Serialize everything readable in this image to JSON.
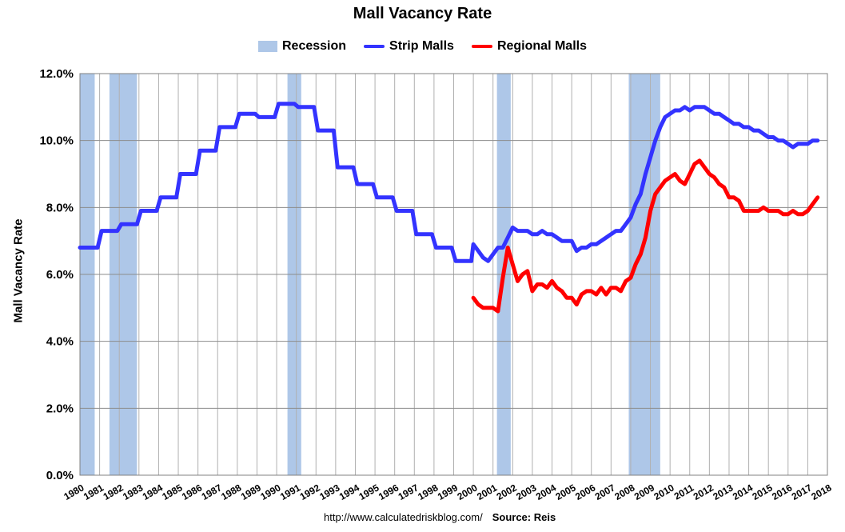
{
  "chart_data": {
    "type": "line",
    "title": "Mall Vacancy Rate",
    "ylabel": "Mall Vacancy Rate",
    "xlabel": "",
    "ylim": [
      0,
      12
    ],
    "xlim": [
      1980,
      2018
    ],
    "y_ticks": [
      "0.0%",
      "2.0%",
      "4.0%",
      "6.0%",
      "8.0%",
      "10.0%",
      "12.0%"
    ],
    "x_ticks": [
      "1980",
      "1981",
      "1982",
      "1983",
      "1984",
      "1985",
      "1986",
      "1987",
      "1988",
      "1989",
      "1990",
      "1991",
      "1992",
      "1993",
      "1994",
      "1995",
      "1996",
      "1997",
      "1998",
      "1999",
      "2000",
      "2001",
      "2002",
      "2003",
      "2004",
      "2005",
      "2006",
      "2007",
      "2008",
      "2009",
      "2010",
      "2011",
      "2012",
      "2013",
      "2014",
      "2015",
      "2016",
      "2017",
      "2018"
    ],
    "grid": true,
    "legend": "top-center",
    "legend_entries": [
      "Recession",
      "Strip Malls",
      "Regional Malls"
    ],
    "recessions": [
      [
        1980.0,
        1980.75
      ],
      [
        1981.5,
        1982.9
      ],
      [
        1990.55,
        1991.25
      ],
      [
        2001.2,
        2001.9
      ],
      [
        2007.9,
        2009.5
      ]
    ],
    "series": [
      {
        "name": "Strip Malls",
        "color": "#3333ff",
        "points": [
          [
            1980.0,
            6.8
          ],
          [
            1980.9,
            6.8
          ],
          [
            1981.1,
            7.3
          ],
          [
            1981.9,
            7.3
          ],
          [
            1982.1,
            7.5
          ],
          [
            1982.9,
            7.5
          ],
          [
            1983.1,
            7.9
          ],
          [
            1983.9,
            7.9
          ],
          [
            1984.1,
            8.3
          ],
          [
            1984.9,
            8.3
          ],
          [
            1985.1,
            9.0
          ],
          [
            1985.9,
            9.0
          ],
          [
            1986.1,
            9.7
          ],
          [
            1986.9,
            9.7
          ],
          [
            1987.1,
            10.4
          ],
          [
            1987.9,
            10.4
          ],
          [
            1988.1,
            10.8
          ],
          [
            1988.9,
            10.8
          ],
          [
            1989.1,
            10.7
          ],
          [
            1989.9,
            10.7
          ],
          [
            1990.1,
            11.1
          ],
          [
            1990.9,
            11.1
          ],
          [
            1991.1,
            11.0
          ],
          [
            1991.9,
            11.0
          ],
          [
            1992.1,
            10.3
          ],
          [
            1992.9,
            10.3
          ],
          [
            1993.1,
            9.2
          ],
          [
            1993.9,
            9.2
          ],
          [
            1994.1,
            8.7
          ],
          [
            1994.9,
            8.7
          ],
          [
            1995.1,
            8.3
          ],
          [
            1995.9,
            8.3
          ],
          [
            1996.1,
            7.9
          ],
          [
            1996.9,
            7.9
          ],
          [
            1997.1,
            7.2
          ],
          [
            1997.9,
            7.2
          ],
          [
            1998.1,
            6.8
          ],
          [
            1998.9,
            6.8
          ],
          [
            1999.1,
            6.4
          ],
          [
            1999.9,
            6.4
          ],
          [
            2000.0,
            6.9
          ],
          [
            2000.25,
            6.7
          ],
          [
            2000.5,
            6.5
          ],
          [
            2000.75,
            6.4
          ],
          [
            2001.0,
            6.6
          ],
          [
            2001.25,
            6.8
          ],
          [
            2001.5,
            6.8
          ],
          [
            2001.75,
            7.1
          ],
          [
            2002.0,
            7.4
          ],
          [
            2002.25,
            7.3
          ],
          [
            2002.5,
            7.3
          ],
          [
            2002.75,
            7.3
          ],
          [
            2003.0,
            7.2
          ],
          [
            2003.25,
            7.2
          ],
          [
            2003.5,
            7.3
          ],
          [
            2003.75,
            7.2
          ],
          [
            2004.0,
            7.2
          ],
          [
            2004.25,
            7.1
          ],
          [
            2004.5,
            7.0
          ],
          [
            2004.75,
            7.0
          ],
          [
            2005.0,
            7.0
          ],
          [
            2005.25,
            6.7
          ],
          [
            2005.5,
            6.8
          ],
          [
            2005.75,
            6.8
          ],
          [
            2006.0,
            6.9
          ],
          [
            2006.25,
            6.9
          ],
          [
            2006.5,
            7.0
          ],
          [
            2006.75,
            7.1
          ],
          [
            2007.0,
            7.2
          ],
          [
            2007.25,
            7.3
          ],
          [
            2007.5,
            7.3
          ],
          [
            2007.75,
            7.5
          ],
          [
            2008.0,
            7.7
          ],
          [
            2008.25,
            8.1
          ],
          [
            2008.5,
            8.4
          ],
          [
            2008.75,
            9.0
          ],
          [
            2009.0,
            9.5
          ],
          [
            2009.25,
            10.0
          ],
          [
            2009.5,
            10.4
          ],
          [
            2009.75,
            10.7
          ],
          [
            2010.0,
            10.8
          ],
          [
            2010.25,
            10.9
          ],
          [
            2010.5,
            10.9
          ],
          [
            2010.75,
            11.0
          ],
          [
            2011.0,
            10.9
          ],
          [
            2011.25,
            11.0
          ],
          [
            2011.5,
            11.0
          ],
          [
            2011.75,
            11.0
          ],
          [
            2012.0,
            10.9
          ],
          [
            2012.25,
            10.8
          ],
          [
            2012.5,
            10.8
          ],
          [
            2012.75,
            10.7
          ],
          [
            2013.0,
            10.6
          ],
          [
            2013.25,
            10.5
          ],
          [
            2013.5,
            10.5
          ],
          [
            2013.75,
            10.4
          ],
          [
            2014.0,
            10.4
          ],
          [
            2014.25,
            10.3
          ],
          [
            2014.5,
            10.3
          ],
          [
            2014.75,
            10.2
          ],
          [
            2015.0,
            10.1
          ],
          [
            2015.25,
            10.1
          ],
          [
            2015.5,
            10.0
          ],
          [
            2015.75,
            10.0
          ],
          [
            2016.0,
            9.9
          ],
          [
            2016.25,
            9.8
          ],
          [
            2016.5,
            9.9
          ],
          [
            2016.75,
            9.9
          ],
          [
            2017.0,
            9.9
          ],
          [
            2017.25,
            10.0
          ],
          [
            2017.5,
            10.0
          ]
        ]
      },
      {
        "name": "Regional Malls",
        "color": "#ff0000",
        "points": [
          [
            2000.0,
            5.3
          ],
          [
            2000.25,
            5.1
          ],
          [
            2000.5,
            5.0
          ],
          [
            2000.75,
            5.0
          ],
          [
            2001.0,
            5.0
          ],
          [
            2001.25,
            4.9
          ],
          [
            2001.5,
            5.9
          ],
          [
            2001.75,
            6.8
          ],
          [
            2002.0,
            6.3
          ],
          [
            2002.25,
            5.8
          ],
          [
            2002.5,
            6.0
          ],
          [
            2002.75,
            6.1
          ],
          [
            2003.0,
            5.5
          ],
          [
            2003.25,
            5.7
          ],
          [
            2003.5,
            5.7
          ],
          [
            2003.75,
            5.6
          ],
          [
            2004.0,
            5.8
          ],
          [
            2004.25,
            5.6
          ],
          [
            2004.5,
            5.5
          ],
          [
            2004.75,
            5.3
          ],
          [
            2005.0,
            5.3
          ],
          [
            2005.25,
            5.1
          ],
          [
            2005.5,
            5.4
          ],
          [
            2005.75,
            5.5
          ],
          [
            2006.0,
            5.5
          ],
          [
            2006.25,
            5.4
          ],
          [
            2006.5,
            5.6
          ],
          [
            2006.75,
            5.4
          ],
          [
            2007.0,
            5.6
          ],
          [
            2007.25,
            5.6
          ],
          [
            2007.5,
            5.5
          ],
          [
            2007.75,
            5.8
          ],
          [
            2008.0,
            5.9
          ],
          [
            2008.25,
            6.3
          ],
          [
            2008.5,
            6.6
          ],
          [
            2008.75,
            7.1
          ],
          [
            2009.0,
            7.9
          ],
          [
            2009.25,
            8.4
          ],
          [
            2009.5,
            8.6
          ],
          [
            2009.75,
            8.8
          ],
          [
            2010.0,
            8.9
          ],
          [
            2010.25,
            9.0
          ],
          [
            2010.5,
            8.8
          ],
          [
            2010.75,
            8.7
          ],
          [
            2011.0,
            9.0
          ],
          [
            2011.25,
            9.3
          ],
          [
            2011.5,
            9.4
          ],
          [
            2011.75,
            9.2
          ],
          [
            2012.0,
            9.0
          ],
          [
            2012.25,
            8.9
          ],
          [
            2012.5,
            8.7
          ],
          [
            2012.75,
            8.6
          ],
          [
            2013.0,
            8.3
          ],
          [
            2013.25,
            8.3
          ],
          [
            2013.5,
            8.2
          ],
          [
            2013.75,
            7.9
          ],
          [
            2014.0,
            7.9
          ],
          [
            2014.25,
            7.9
          ],
          [
            2014.5,
            7.9
          ],
          [
            2014.75,
            8.0
          ],
          [
            2015.0,
            7.9
          ],
          [
            2015.25,
            7.9
          ],
          [
            2015.5,
            7.9
          ],
          [
            2015.75,
            7.8
          ],
          [
            2016.0,
            7.8
          ],
          [
            2016.25,
            7.9
          ],
          [
            2016.5,
            7.8
          ],
          [
            2016.75,
            7.8
          ],
          [
            2017.0,
            7.9
          ],
          [
            2017.25,
            8.1
          ],
          [
            2017.5,
            8.3
          ]
        ]
      }
    ]
  },
  "legend": {
    "recession_label": "Recession",
    "strip_label": "Strip Malls",
    "regional_label": "Regional Malls",
    "recession_color": "#aec7e8",
    "strip_color": "#3333ff",
    "regional_color": "#ff0000"
  },
  "footer": {
    "url": "http://www.calculatedriskblog.com/",
    "source": "Source: Reis"
  }
}
